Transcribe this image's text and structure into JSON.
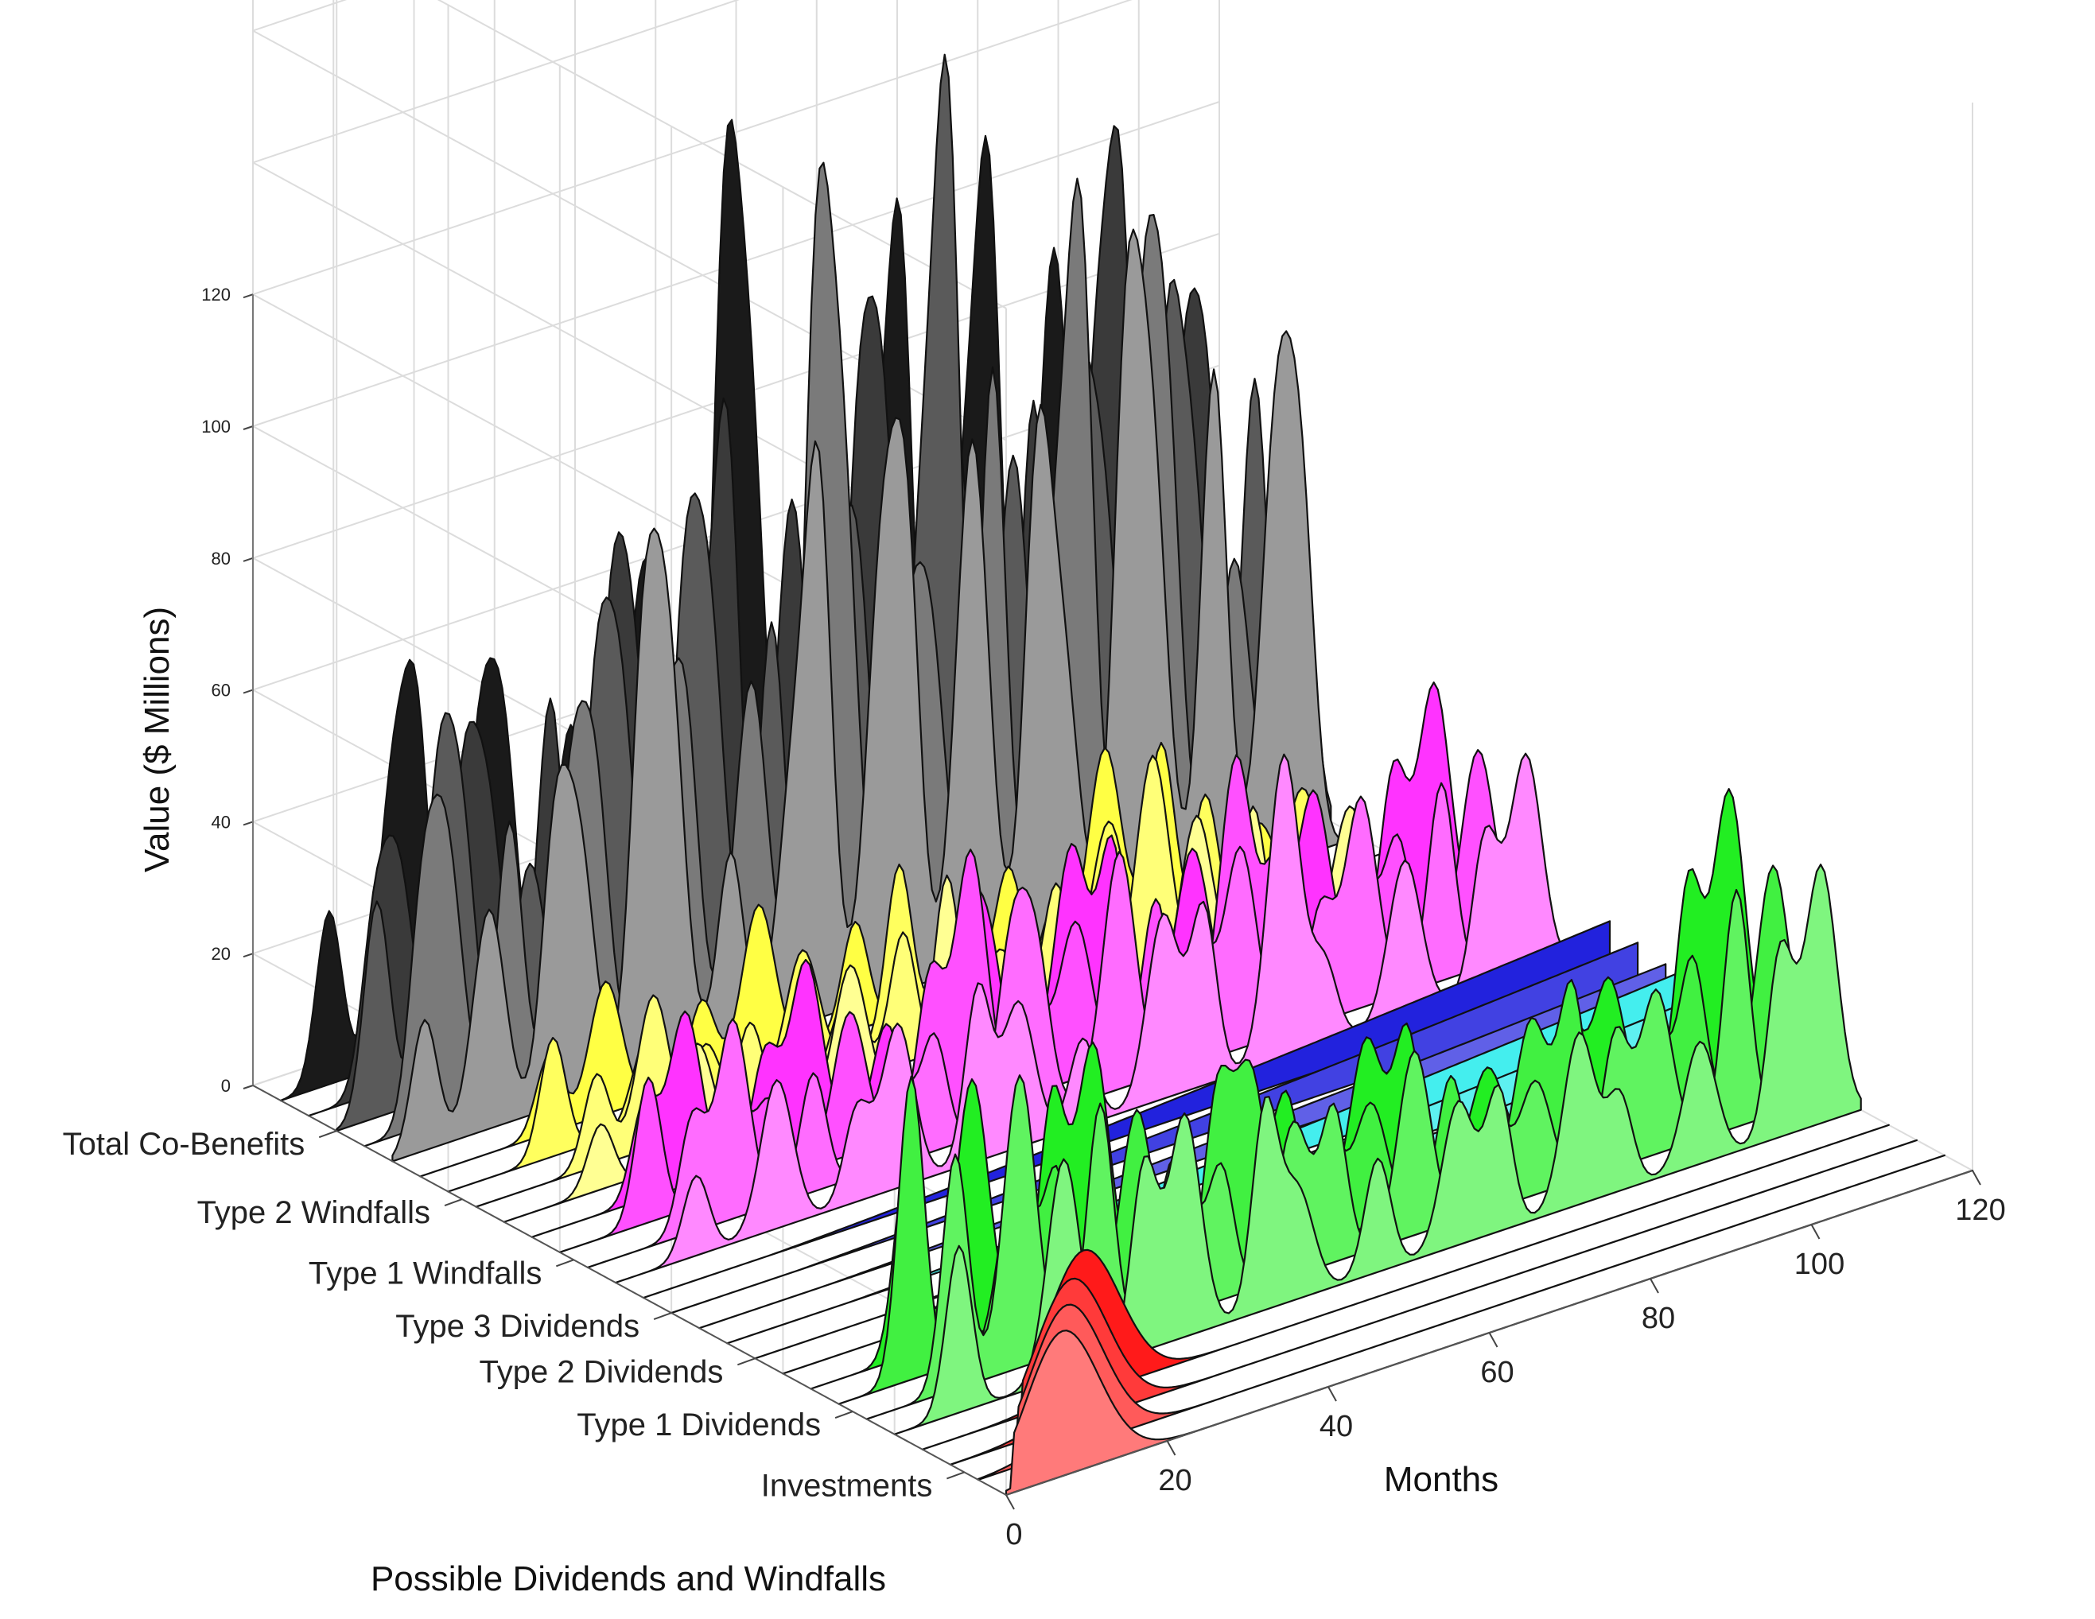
{
  "chart_data": {
    "type": "area",
    "subtype": "3d-waterfall-ridgeline",
    "title": "",
    "xlabel": "Months",
    "ylabel": "Possible Dividends and Windfalls",
    "zlabel": "Value ($ Millions)",
    "xlim": [
      0,
      120
    ],
    "zlim": [
      0,
      120
    ],
    "x_ticks": [
      "0",
      "20",
      "40",
      "60",
      "80",
      "100",
      "120"
    ],
    "z_ticks": [
      "0",
      "20",
      "40",
      "60",
      "80",
      "100",
      "120"
    ],
    "categories": [
      "Investments",
      "Type 1 Dividends",
      "Type 2 Dividends",
      "Type 3 Dividends",
      "Type 1 Windfalls",
      "Type 2 Windfalls",
      "Total Co-Benefits"
    ],
    "grid": true,
    "series": [
      {
        "name": "Investments",
        "color": "#ff1a1a",
        "traces": 4,
        "peaks": [
          [
            1,
            22
          ],
          [
            5,
            22
          ],
          [
            9,
            22
          ],
          [
            14,
            22
          ]
        ]
      },
      {
        "name": "Type 1 Dividends",
        "color": "#22ee22",
        "traces": 4,
        "peaks": [
          [
            10,
            46
          ],
          [
            21,
            50
          ],
          [
            29,
            36
          ],
          [
            37,
            38
          ],
          [
            45,
            30
          ],
          [
            52,
            30
          ],
          [
            60,
            26
          ],
          [
            68,
            28
          ],
          [
            76,
            24
          ],
          [
            84,
            26
          ],
          [
            92,
            26
          ],
          [
            100,
            28
          ],
          [
            108,
            36
          ],
          [
            116,
            44
          ]
        ]
      },
      {
        "name": "Type 2 Dividends",
        "color": "#44eeee",
        "traces": 3,
        "peaks": [
          [
            30,
            3
          ],
          [
            60,
            5
          ],
          [
            90,
            7
          ],
          [
            118,
            8
          ]
        ]
      },
      {
        "name": "Type 3 Dividends",
        "color": "#2222dd",
        "traces": 3,
        "peaks": [
          [
            40,
            4
          ],
          [
            80,
            6
          ],
          [
            118,
            8
          ]
        ]
      },
      {
        "name": "Type 1 Windfalls",
        "color": "#ff33ff",
        "traces": 4,
        "peaks": [
          [
            12,
            22
          ],
          [
            20,
            34
          ],
          [
            28,
            18
          ],
          [
            36,
            28
          ],
          [
            44,
            26
          ],
          [
            52,
            40
          ],
          [
            58,
            20
          ],
          [
            66,
            36
          ],
          [
            74,
            30
          ],
          [
            82,
            46
          ],
          [
            90,
            22
          ],
          [
            98,
            36
          ],
          [
            106,
            30
          ],
          [
            114,
            38
          ]
        ]
      },
      {
        "name": "Type 2 Windfalls",
        "color": "#ffff44",
        "traces": 4,
        "peaks": [
          [
            14,
            18
          ],
          [
            24,
            26
          ],
          [
            34,
            14
          ],
          [
            44,
            24
          ],
          [
            54,
            30
          ],
          [
            64,
            16
          ],
          [
            74,
            22
          ],
          [
            84,
            34
          ],
          [
            94,
            28
          ],
          [
            104,
            20
          ]
        ]
      },
      {
        "name": "Total Co-Benefits",
        "color": "#1a1a1a",
        "traces": 5,
        "peaks": [
          [
            6,
            36
          ],
          [
            12,
            52
          ],
          [
            18,
            46
          ],
          [
            24,
            48
          ],
          [
            30,
            56
          ],
          [
            36,
            66
          ],
          [
            42,
            54
          ],
          [
            48,
            62
          ],
          [
            54,
            100
          ],
          [
            60,
            84
          ],
          [
            66,
            60
          ],
          [
            72,
            80
          ],
          [
            78,
            118
          ],
          [
            84,
            68
          ],
          [
            90,
            98
          ],
          [
            96,
            90
          ],
          [
            102,
            86
          ],
          [
            108,
            70
          ],
          [
            114,
            74
          ]
        ]
      }
    ]
  }
}
